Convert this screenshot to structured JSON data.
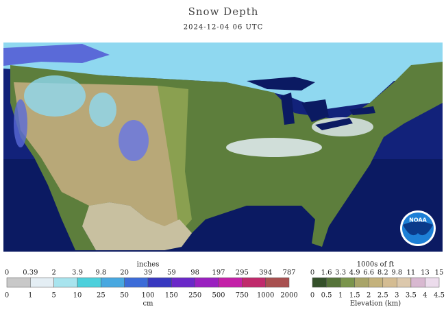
{
  "header": {
    "title": "Snow Depth",
    "subtitle": "2024-12-04 06 UTC"
  },
  "logo": "NOAA",
  "snow_legend": {
    "title": "inches",
    "unit": "cm",
    "top_labels": [
      0,
      0.39,
      2,
      3.9,
      9.8,
      20,
      39,
      59,
      98,
      197,
      295,
      394,
      787
    ],
    "bottom_labels": [
      0,
      1,
      5,
      10,
      25,
      50,
      100,
      150,
      250,
      500,
      750,
      1000,
      2000
    ],
    "colors": [
      "#c8c8c8",
      "#e4eef4",
      "#a8e4ee",
      "#4cd0dc",
      "#48a8e0",
      "#3c6cd8",
      "#3838c0",
      "#6a28c8",
      "#9a20c0",
      "#c420a8",
      "#c02a6c",
      "#a85050"
    ]
  },
  "elevation_legend": {
    "title": "1000s of ft",
    "label": "Elevation (km)",
    "top_labels": [
      0,
      1.6,
      3.3,
      4.9,
      6.6,
      8.2,
      9.8,
      11,
      13,
      15
    ],
    "bottom_labels": [
      0,
      0.5,
      1,
      1.5,
      2,
      2.5,
      3,
      3.5,
      4,
      4.5
    ],
    "colors": [
      "#34502a",
      "#56743a",
      "#7a944c",
      "#a8a468",
      "#c4b27c",
      "#d4bc92",
      "#dcc8ac",
      "#d8b8d0",
      "#ecdcec"
    ]
  }
}
